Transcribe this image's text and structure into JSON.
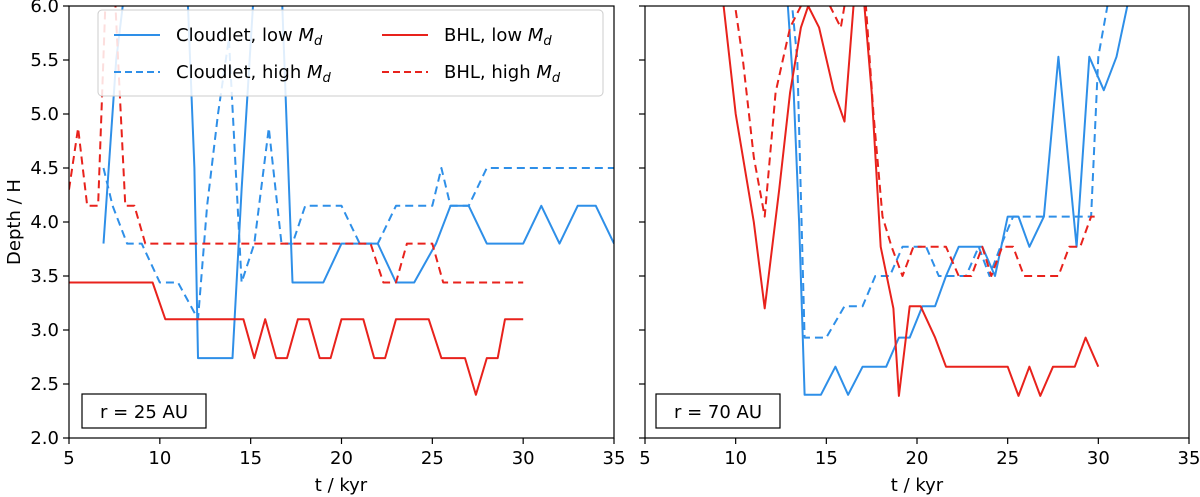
{
  "chart_data": [
    {
      "type": "line",
      "xlabel": "t / kyr",
      "ylabel": "Depth / H",
      "xlim": [
        5,
        35
      ],
      "ylim": [
        2.0,
        6.0
      ],
      "xticks": [
        5,
        10,
        15,
        20,
        25,
        30,
        35
      ],
      "yticks": [
        2.0,
        2.5,
        3.0,
        3.5,
        4.0,
        4.5,
        5.0,
        5.5,
        6.0
      ],
      "xtick_labels": [
        "5",
        "10",
        "15",
        "20",
        "25",
        "30",
        "35"
      ],
      "ytick_labels": [
        "2.0",
        "2.5",
        "3.0",
        "3.5",
        "4.0",
        "4.5",
        "5.0",
        "5.5",
        "6.0"
      ],
      "annotation": "r = 25 AU",
      "legend": {
        "placement": "top",
        "entries": [
          "Cloudlet, low M_d",
          "Cloudlet, high M_d",
          "BHL, low M_d",
          "BHL, high M_d"
        ]
      },
      "series": [
        {
          "name": "Cloudlet, low M_d",
          "color": "#2e8fe8",
          "dash": "solid",
          "x": [
            6.9,
            7.6,
            8.1,
            8.4,
            9,
            11.5,
            11.9,
            12.1,
            14,
            14.5,
            15.2,
            16,
            16.7,
            17.3,
            18,
            19,
            20,
            21,
            22,
            23,
            24,
            25.2,
            26,
            27,
            28,
            29,
            30,
            31,
            32,
            33,
            34,
            35
          ],
          "y": [
            3.8,
            5.5,
            6.2,
            6.2,
            6.2,
            6.2,
            4.5,
            2.74,
            2.74,
            4.3,
            6.2,
            6.2,
            6.2,
            3.44,
            3.44,
            3.44,
            3.8,
            3.8,
            3.8,
            3.44,
            3.44,
            3.8,
            4.15,
            4.15,
            3.8,
            3.8,
            3.8,
            4.15,
            3.8,
            4.15,
            4.15,
            3.8
          ]
        },
        {
          "name": "Cloudlet, high M_d",
          "color": "#2e8fe8",
          "dash": "dashed",
          "x": [
            6.9,
            7.4,
            8.2,
            9,
            10,
            11,
            12.1,
            12.6,
            13.2,
            13.8,
            14.5,
            15.2,
            16,
            16.7,
            17.3,
            18,
            19,
            20,
            21,
            22,
            23,
            24,
            25,
            25.5,
            26,
            27,
            28,
            29,
            30,
            31,
            32,
            33,
            34,
            35
          ],
          "y": [
            4.5,
            4.15,
            3.8,
            3.8,
            3.44,
            3.44,
            3.1,
            4.15,
            5.0,
            5.7,
            3.44,
            3.8,
            4.87,
            3.8,
            3.8,
            4.15,
            4.15,
            4.15,
            3.8,
            3.8,
            4.15,
            4.15,
            4.15,
            4.5,
            4.15,
            4.15,
            4.5,
            4.5,
            4.5,
            4.5,
            4.5,
            4.5,
            4.5,
            4.5
          ]
        },
        {
          "name": "BHL, low M_d",
          "color": "#e8221c",
          "dash": "solid",
          "x": [
            5,
            6,
            7,
            8,
            9,
            9.6,
            10.3,
            11,
            12,
            13,
            14,
            14.6,
            15.2,
            15.8,
            16.4,
            17,
            17.6,
            18.2,
            18.8,
            19.4,
            20,
            20.6,
            21.2,
            21.8,
            22.4,
            23,
            23.6,
            24.2,
            24.8,
            25.5,
            26.2,
            26.8,
            27.4,
            28,
            28.6,
            29,
            29.6,
            30
          ],
          "y": [
            3.44,
            3.44,
            3.44,
            3.44,
            3.44,
            3.44,
            3.1,
            3.1,
            3.1,
            3.1,
            3.1,
            3.1,
            2.74,
            3.1,
            2.74,
            2.74,
            3.1,
            3.1,
            2.74,
            2.74,
            3.1,
            3.1,
            3.1,
            2.74,
            2.74,
            3.1,
            3.1,
            3.1,
            3.1,
            2.74,
            2.74,
            2.74,
            2.4,
            2.74,
            2.74,
            3.1,
            3.1,
            3.1
          ]
        },
        {
          "name": "BHL, high M_d",
          "color": "#e8221c",
          "dash": "dashed",
          "x": [
            5,
            5.5,
            6,
            6.6,
            7,
            7.5,
            8.1,
            8.6,
            9.2,
            10,
            11,
            12,
            13,
            14,
            15,
            16,
            17,
            18,
            19,
            20,
            21,
            21.6,
            22.3,
            23,
            23.6,
            24.2,
            25,
            25.6,
            26.2,
            27,
            28,
            29,
            30
          ],
          "y": [
            4.3,
            4.87,
            4.15,
            4.15,
            6.0,
            6.2,
            4.15,
            4.15,
            3.8,
            3.8,
            3.8,
            3.8,
            3.8,
            3.8,
            3.8,
            3.8,
            3.8,
            3.8,
            3.8,
            3.8,
            3.8,
            3.8,
            3.44,
            3.44,
            3.8,
            3.8,
            3.8,
            3.44,
            3.44,
            3.44,
            3.44,
            3.44,
            3.44
          ]
        }
      ]
    },
    {
      "type": "line",
      "xlabel": "t / kyr",
      "ylabel": "",
      "xlim": [
        5,
        35
      ],
      "ylim": [
        2.0,
        6.0
      ],
      "xticks": [
        5,
        10,
        15,
        20,
        25,
        30,
        35
      ],
      "yticks": [
        2.0,
        2.5,
        3.0,
        3.5,
        4.0,
        4.5,
        5.0,
        5.5,
        6.0
      ],
      "xtick_labels": [
        "5",
        "10",
        "15",
        "20",
        "25",
        "30",
        "35"
      ],
      "ytick_labels": [],
      "annotation": "r = 70 AU",
      "series": [
        {
          "name": "Cloudlet, low M_d",
          "color": "#2e8fe8",
          "dash": "solid",
          "x": [
            12.8,
            13.2,
            13.5,
            13.8,
            14,
            14.7,
            15.5,
            16.2,
            17,
            17.7,
            18.3,
            19,
            19.6,
            20.3,
            21,
            21.6,
            22.3,
            23,
            23.6,
            24.3,
            25,
            25.6,
            26.2,
            27,
            27.8,
            28.8,
            29.5,
            30.3,
            31,
            31.6,
            32,
            33
          ],
          "y": [
            6.2,
            5.2,
            4.0,
            2.4,
            2.4,
            2.4,
            2.66,
            2.4,
            2.66,
            2.66,
            2.66,
            2.93,
            2.93,
            3.22,
            3.22,
            3.5,
            3.77,
            3.77,
            3.77,
            3.5,
            4.05,
            4.05,
            3.77,
            4.05,
            5.53,
            3.77,
            5.53,
            5.22,
            5.53,
            6.0,
            6.2,
            6.2
          ]
        },
        {
          "name": "Cloudlet, high M_d",
          "color": "#2e8fe8",
          "dash": "dashed",
          "x": [
            13,
            13.4,
            13.8,
            14.2,
            15,
            16,
            17,
            17.7,
            18.5,
            19.2,
            19.8,
            20.5,
            21.2,
            22,
            22.7,
            23.4,
            24,
            24.6,
            25.3,
            26,
            27,
            28,
            29,
            29.6,
            30,
            30.5,
            31
          ],
          "y": [
            6.2,
            5.5,
            2.93,
            2.93,
            2.93,
            3.22,
            3.22,
            3.5,
            3.5,
            3.77,
            3.77,
            3.77,
            3.5,
            3.5,
            3.5,
            3.77,
            3.5,
            3.77,
            4.05,
            4.05,
            4.05,
            4.05,
            4.05,
            4.05,
            5.53,
            6.0,
            6.2
          ]
        },
        {
          "name": "BHL, low M_d",
          "color": "#e8221c",
          "dash": "solid",
          "x": [
            9.2,
            10,
            11,
            11.6,
            12.4,
            13,
            13.6,
            14,
            14.6,
            15.4,
            16,
            16.5,
            17,
            17.5,
            18,
            18.7,
            19,
            19.6,
            20.2,
            21,
            21.6,
            22.3,
            23,
            23.6,
            24.3,
            25,
            25.6,
            26.2,
            26.8,
            27.5,
            28.1,
            28.7,
            29.3,
            30
          ],
          "y": [
            6.2,
            5.0,
            4.0,
            3.2,
            4.3,
            5.2,
            5.8,
            6.0,
            5.8,
            5.22,
            4.93,
            6.0,
            6.2,
            5.2,
            3.77,
            3.2,
            2.39,
            3.22,
            3.22,
            2.93,
            2.66,
            2.66,
            2.66,
            2.66,
            2.66,
            2.66,
            2.39,
            2.66,
            2.39,
            2.66,
            2.66,
            2.66,
            2.93,
            2.66
          ]
        },
        {
          "name": "BHL, high M_d",
          "color": "#e8221c",
          "dash": "dashed",
          "x": [
            9.8,
            10.4,
            11,
            11.6,
            12.2,
            12.6,
            13,
            13.6,
            14,
            14.6,
            15.2,
            15.8,
            16.2,
            16.6,
            17.1,
            17.6,
            18.1,
            18.6,
            19.2,
            19.8,
            20.4,
            21,
            21.6,
            22.3,
            23,
            23.6,
            24.1,
            24.7,
            25.3,
            25.9,
            26.5,
            27.2,
            27.8,
            28.4,
            29,
            29.6,
            30
          ],
          "y": [
            6.2,
            5.5,
            4.6,
            4.05,
            5.2,
            5.5,
            5.8,
            6.0,
            6.2,
            6.2,
            6.0,
            5.8,
            6.2,
            6.2,
            6.2,
            5.0,
            4.05,
            3.77,
            3.5,
            3.77,
            3.77,
            3.77,
            3.77,
            3.5,
            3.5,
            3.77,
            3.5,
            3.77,
            3.77,
            3.5,
            3.5,
            3.5,
            3.5,
            3.77,
            3.77,
            4.05,
            4.05
          ]
        }
      ]
    }
  ]
}
